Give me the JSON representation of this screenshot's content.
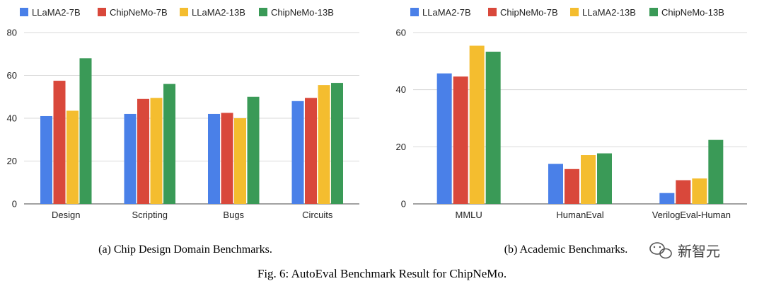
{
  "colors": {
    "LLaMA2-7B": "#4a80e8",
    "ChipNeMo-7B": "#d9483b",
    "LLaMA2-13B": "#f4bd2f",
    "ChipNeMo-13B": "#3a9a57"
  },
  "chart_data": [
    {
      "type": "bar",
      "title": "",
      "caption": "(a) Chip Design Domain Benchmarks.",
      "categories": [
        "Design",
        "Scripting",
        "Bugs",
        "Circuits"
      ],
      "ylim": [
        0,
        80
      ],
      "yticks": [
        "0",
        "20",
        "40",
        "60",
        "80"
      ],
      "grid": true,
      "legend": "top",
      "series": [
        {
          "name": "LLaMA2-7B",
          "values": [
            41,
            42,
            42,
            48
          ]
        },
        {
          "name": "ChipNeMo-7B",
          "values": [
            57.5,
            49,
            42.5,
            49.5
          ]
        },
        {
          "name": "LLaMA2-13B",
          "values": [
            43.5,
            49.5,
            40,
            55.5
          ]
        },
        {
          "name": "ChipNeMo-13B",
          "values": [
            68,
            56,
            50,
            56.5
          ]
        }
      ]
    },
    {
      "type": "bar",
      "title": "",
      "caption": "(b) Academic Benchmarks.",
      "categories": [
        "MMLU",
        "HumanEval",
        "VerilogEval-Human"
      ],
      "ylim": [
        0,
        60
      ],
      "yticks": [
        "0",
        "20",
        "40",
        "60"
      ],
      "grid": true,
      "legend": "top",
      "series": [
        {
          "name": "LLaMA2-7B",
          "values": [
            45.7,
            14,
            3.8
          ]
        },
        {
          "name": "ChipNeMo-7B",
          "values": [
            44.6,
            12.2,
            8.3
          ]
        },
        {
          "name": "LLaMA2-13B",
          "values": [
            55.4,
            17.1,
            8.9
          ]
        },
        {
          "name": "ChipNeMo-13B",
          "values": [
            53.3,
            17.7,
            22.4
          ]
        }
      ]
    }
  ],
  "figure_caption": "Fig. 6: AutoEval Benchmark Result for ChipNeMo.",
  "watermark": "新智元"
}
